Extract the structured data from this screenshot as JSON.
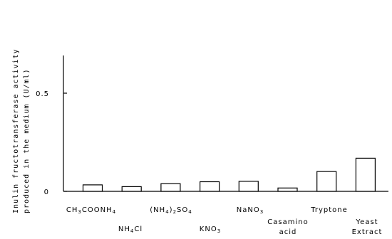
{
  "chart_data": {
    "type": "bar",
    "ylabel_lines": [
      "Inulin fructotransferase activity",
      "produced in the medium (U/ml)"
    ],
    "ylim": [
      0,
      1
    ],
    "yticks": [
      {
        "value": 0,
        "label": "0"
      },
      {
        "value": 0.5,
        "label": "0.5"
      }
    ],
    "grid": false,
    "categories": [
      {
        "label_html": "CH<tspan font-size=\"7\" dy=\"2\">3</tspan><tspan dy=\"-2\">COONH</tspan><tspan font-size=\"7\" dy=\"2\">4</tspan>"
      },
      {
        "label_html": "NH<tspan font-size=\"7\" dy=\"2\">4</tspan><tspan dy=\"-2\">Cl</tspan>"
      },
      {
        "label_html": "(NH<tspan font-size=\"7\" dy=\"2\">4</tspan><tspan dy=\"-2\">)</tspan><tspan font-size=\"7\" dy=\"2\">2</tspan><tspan dy=\"-2\">SO</tspan><tspan font-size=\"7\" dy=\"2\">4</tspan>"
      },
      {
        "label_html": "KNO<tspan font-size=\"7\" dy=\"2\">3</tspan>"
      },
      {
        "label_html": "NaNO<tspan font-size=\"7\" dy=\"2\">3</tspan>"
      },
      {
        "lines": [
          "Casamino",
          "acid"
        ]
      },
      {
        "lines": [
          "Tryptone"
        ]
      },
      {
        "lines": [
          "Yeast",
          "Extract"
        ]
      }
    ],
    "values": [
      0.033,
      0.024,
      0.039,
      0.049,
      0.051,
      0.017,
      0.101,
      0.169
    ]
  }
}
